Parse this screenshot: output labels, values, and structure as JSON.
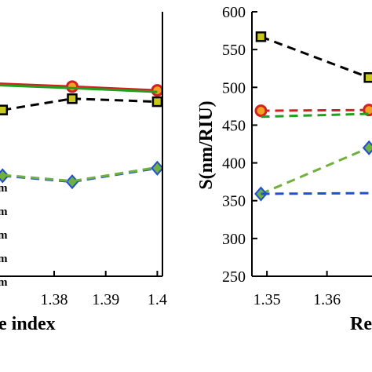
{
  "chart_data": [
    {
      "type": "line",
      "panel": "left",
      "xlabel": "e index",
      "ylabel": "",
      "x_ticks": [
        "1.38",
        "1.39",
        "1.4"
      ],
      "xlim": [
        1.3695,
        1.401
      ],
      "ylim": [
        250,
        600
      ],
      "legend": {
        "placement": "bottom-left",
        "entries": [
          "m",
          "m",
          "m",
          "m",
          "m"
        ]
      },
      "series": [
        {
          "name": "",
          "color": "#d42020",
          "dash": "solid",
          "marker": "circle",
          "x": [
            1.365,
            1.3835,
            1.4
          ],
          "y": [
            506,
            501,
            496
          ]
        },
        {
          "name": "",
          "color": "#20a020",
          "dash": "solid",
          "marker": "",
          "x": [
            1.365,
            1.3835,
            1.4
          ],
          "y": [
            504,
            499,
            494
          ]
        },
        {
          "name": "",
          "color": "#000000",
          "dash": "dashed",
          "marker": "square",
          "x": [
            1.37,
            1.3835,
            1.4
          ],
          "y": [
            470,
            485,
            481
          ]
        },
        {
          "name": "",
          "color": "#2050d0",
          "dash": "dashed",
          "marker": "diamond",
          "x": [
            1.37,
            1.3835,
            1.4
          ],
          "y": [
            383,
            375,
            393
          ]
        },
        {
          "name": "",
          "color": "#70b040",
          "dash": "dashed",
          "marker": "",
          "x": [
            1.37,
            1.3835,
            1.4
          ],
          "y": [
            384,
            376,
            394
          ]
        }
      ]
    },
    {
      "type": "line",
      "panel": "right",
      "xlabel": "Re",
      "ylabel": "S(nm/RIU)",
      "x_ticks": [
        "1.35",
        "1.36"
      ],
      "y_ticks": [
        "250",
        "300",
        "350",
        "400",
        "450",
        "500",
        "550",
        "600"
      ],
      "xlim": [
        1.3475,
        1.3675
      ],
      "ylim": [
        250,
        600
      ],
      "series": [
        {
          "name": "",
          "color": "#000000",
          "dash": "dashed",
          "marker": "square",
          "x": [
            1.349,
            1.367
          ],
          "y": [
            567,
            513
          ]
        },
        {
          "name": "",
          "color": "#d42020",
          "dash": "dashed",
          "marker": "circle",
          "x": [
            1.349,
            1.367
          ],
          "y": [
            469,
            470
          ]
        },
        {
          "name": "",
          "color": "#20a020",
          "dash": "dashed",
          "marker": "",
          "x": [
            1.349,
            1.367
          ],
          "y": [
            461,
            465
          ]
        },
        {
          "name": "",
          "color": "#70b040",
          "dash": "dashed",
          "marker": "diamond",
          "x": [
            1.349,
            1.367
          ],
          "y": [
            359,
            420
          ]
        },
        {
          "name": "",
          "color": "#2050d0",
          "dash": "dashed",
          "marker": "",
          "x": [
            1.349,
            1.367
          ],
          "y": [
            359,
            360
          ]
        }
      ]
    }
  ]
}
